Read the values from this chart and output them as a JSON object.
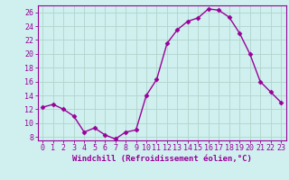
{
  "x": [
    0,
    1,
    2,
    3,
    4,
    5,
    6,
    7,
    8,
    9,
    10,
    11,
    12,
    13,
    14,
    15,
    16,
    17,
    18,
    19,
    20,
    21,
    22,
    23
  ],
  "y": [
    12.3,
    12.7,
    12.0,
    11.0,
    8.7,
    9.3,
    8.3,
    7.7,
    8.7,
    9.0,
    14.0,
    16.3,
    21.5,
    23.5,
    24.7,
    25.2,
    26.5,
    26.3,
    25.3,
    23.0,
    20.0,
    16.0,
    14.5,
    13.0
  ],
  "line_color": "#990099",
  "marker": "D",
  "marker_size": 2.5,
  "linewidth": 1.0,
  "bg_color": "#cff0ee",
  "grid_color": "#b0d4cc",
  "xlabel": "Windchill (Refroidissement éolien,°C)",
  "xlim": [
    -0.5,
    23.5
  ],
  "ylim": [
    7.5,
    27
  ],
  "yticks": [
    8,
    10,
    12,
    14,
    16,
    18,
    20,
    22,
    24,
    26
  ],
  "xticks": [
    0,
    1,
    2,
    3,
    4,
    5,
    6,
    7,
    8,
    9,
    10,
    11,
    12,
    13,
    14,
    15,
    16,
    17,
    18,
    19,
    20,
    21,
    22,
    23
  ],
  "xlabel_fontsize": 6.5,
  "tick_fontsize": 6.0
}
